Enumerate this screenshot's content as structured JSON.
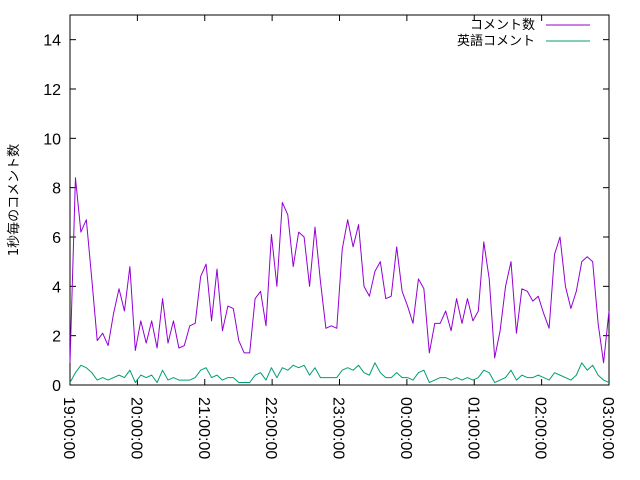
{
  "chart_data": {
    "type": "line",
    "title": "",
    "xlabel": "",
    "ylabel": "1秒毎のコメント数",
    "ylim": [
      0,
      15
    ],
    "yticks": [
      0,
      2,
      4,
      6,
      8,
      10,
      12,
      14
    ],
    "xtick_labels": [
      "19:00:00",
      "20:00:00",
      "21:00:00",
      "22:00:00",
      "23:00:00",
      "00:00:00",
      "01:00:00",
      "02:00:00",
      "03:00:00"
    ],
    "legend_position": "top-right",
    "grid": false,
    "series": [
      {
        "name": "コメント数",
        "color": "#9400d3",
        "values": [
          0.9,
          8.4,
          6.2,
          6.7,
          4.3,
          1.8,
          2.1,
          1.6,
          2.9,
          3.9,
          3.0,
          4.8,
          1.4,
          2.6,
          1.7,
          2.6,
          1.5,
          3.5,
          1.7,
          2.6,
          1.5,
          1.6,
          2.4,
          2.5,
          4.4,
          4.9,
          2.6,
          4.7,
          2.2,
          3.2,
          3.1,
          1.8,
          1.3,
          1.3,
          3.5,
          3.8,
          2.4,
          6.1,
          4.0,
          7.4,
          6.9,
          4.8,
          6.2,
          6.0,
          4.0,
          6.4,
          4.2,
          2.3,
          2.4,
          2.3,
          5.5,
          6.7,
          5.6,
          6.5,
          4.0,
          3.6,
          4.6,
          5.0,
          3.5,
          3.6,
          5.6,
          3.8,
          3.2,
          2.5,
          4.3,
          3.9,
          1.3,
          2.5,
          2.5,
          3.0,
          2.2,
          3.5,
          2.5,
          3.5,
          2.6,
          3.0,
          5.8,
          4.3,
          1.1,
          2.2,
          4.0,
          5.0,
          2.1,
          3.9,
          3.8,
          3.4,
          3.6,
          2.9,
          2.3,
          5.3,
          6.0,
          4.0,
          3.1,
          3.8,
          5.0,
          5.2,
          5.0,
          2.5,
          0.9,
          3.0
        ]
      },
      {
        "name": "英語コメント",
        "color": "#009e73",
        "values": [
          0.1,
          0.5,
          0.8,
          0.7,
          0.5,
          0.2,
          0.3,
          0.2,
          0.3,
          0.4,
          0.3,
          0.6,
          0.1,
          0.4,
          0.3,
          0.4,
          0.1,
          0.6,
          0.2,
          0.3,
          0.2,
          0.2,
          0.2,
          0.3,
          0.6,
          0.7,
          0.3,
          0.4,
          0.2,
          0.3,
          0.3,
          0.1,
          0.1,
          0.1,
          0.4,
          0.5,
          0.2,
          0.7,
          0.3,
          0.7,
          0.6,
          0.8,
          0.7,
          0.8,
          0.4,
          0.7,
          0.3,
          0.3,
          0.3,
          0.3,
          0.6,
          0.7,
          0.6,
          0.8,
          0.5,
          0.4,
          0.9,
          0.5,
          0.3,
          0.3,
          0.5,
          0.3,
          0.3,
          0.2,
          0.5,
          0.6,
          0.1,
          0.2,
          0.3,
          0.3,
          0.2,
          0.3,
          0.2,
          0.3,
          0.2,
          0.3,
          0.6,
          0.5,
          0.1,
          0.2,
          0.3,
          0.6,
          0.2,
          0.4,
          0.3,
          0.3,
          0.4,
          0.3,
          0.2,
          0.5,
          0.4,
          0.3,
          0.2,
          0.4,
          0.9,
          0.6,
          0.8,
          0.4,
          0.2,
          0.1
        ]
      }
    ]
  }
}
